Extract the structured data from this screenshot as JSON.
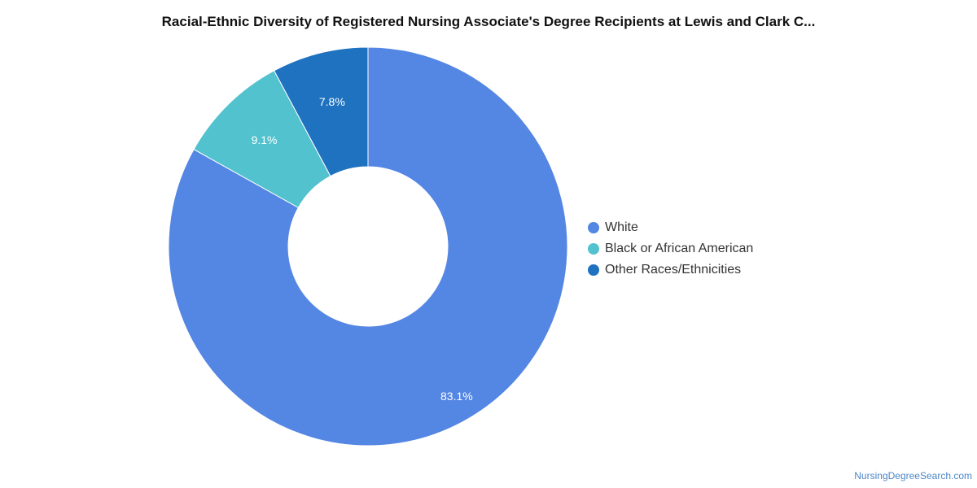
{
  "chart_data": {
    "type": "pie",
    "title": "Racial-Ethnic Diversity of Registered Nursing Associate's Degree Recipients at Lewis and Clark C...",
    "legend_position": "right",
    "slices": [
      {
        "label": "White",
        "value": 83.1,
        "value_label": "83.1%",
        "color": "#5486e3"
      },
      {
        "label": "Black or African American",
        "value": 9.1,
        "value_label": "9.1%",
        "color": "#52c2ce"
      },
      {
        "label": "Other Races/Ethnicities",
        "value": 7.8,
        "value_label": "7.8%",
        "color": "#1f72bf"
      }
    ]
  },
  "credit": "NursingDegreeSearch.com"
}
